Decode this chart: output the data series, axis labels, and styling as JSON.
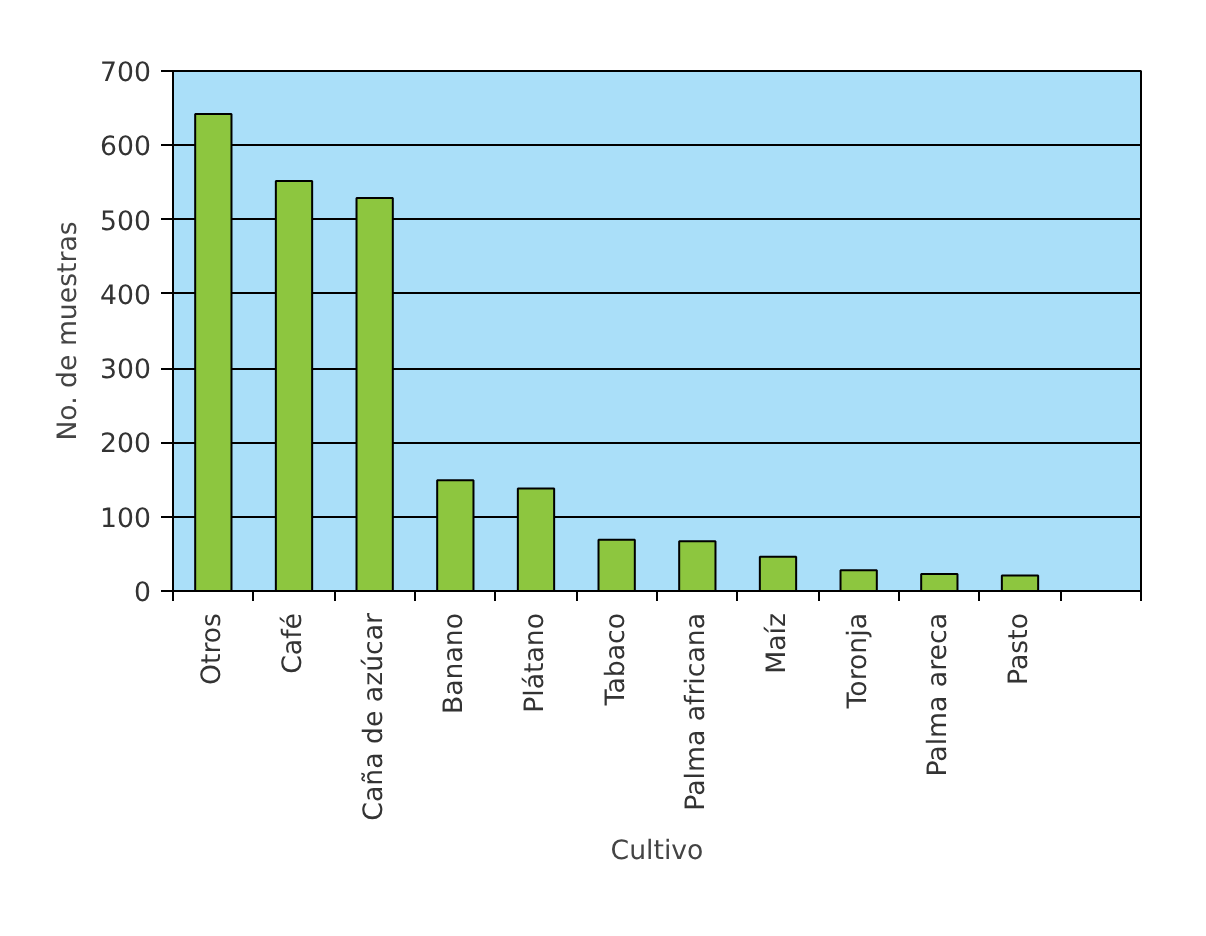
{
  "chart_data": {
    "type": "bar",
    "xlabel": "Cultivo",
    "ylabel": "No. de muestras",
    "categories": [
      "Otros",
      "Café",
      "Caña de azúcar",
      "Banano",
      "Plátano",
      "Tabaco",
      "Palma africana",
      "Maíz",
      "Toronja",
      "Palma areca",
      "Pasto",
      null
    ],
    "values": [
      642,
      552,
      529,
      149,
      138,
      69,
      67,
      46,
      28,
      23,
      21,
      null
    ],
    "color": "#8dc63f",
    "ylim": [
      0,
      700
    ],
    "yticks": [
      0,
      100,
      200,
      300,
      400,
      500,
      600,
      700
    ],
    "grid": "y"
  }
}
